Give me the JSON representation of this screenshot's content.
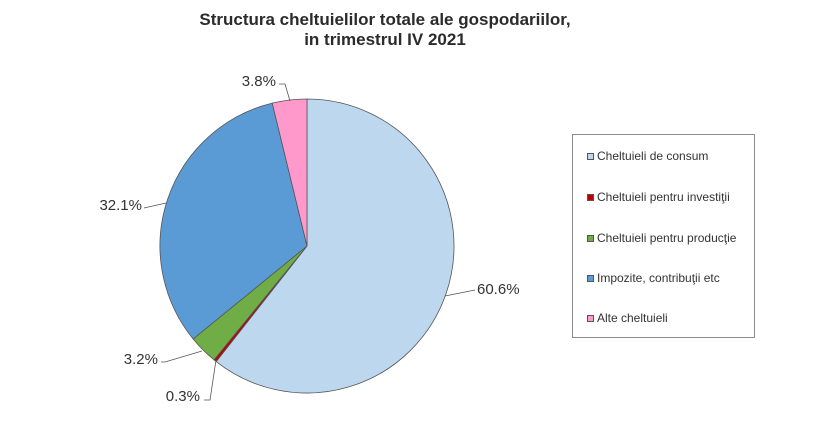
{
  "chart_data": {
    "type": "pie",
    "title": "Structura cheltuielilor totale ale gospodariilor,",
    "subtitle": "in trimestrul IV 2021",
    "legend_position": "right",
    "slices": [
      {
        "name": "Cheltuieli de consum",
        "value": 60.6,
        "label": "60.6%",
        "color": "#bdd7ee"
      },
      {
        "name": "Cheltuieli pentru investiţii",
        "value": 0.3,
        "label": "0.3%",
        "color": "#c00000"
      },
      {
        "name": "Cheltuieli pentru producţie",
        "value": 3.2,
        "label": "3.2%",
        "color": "#70ad47"
      },
      {
        "name": "Impozite, contribuţii etc",
        "value": 32.1,
        "label": "32.1%",
        "color": "#5b9bd5"
      },
      {
        "name": "Alte cheltuieli",
        "value": 3.8,
        "label": "3.8%",
        "color": "#ff99cc"
      }
    ]
  }
}
